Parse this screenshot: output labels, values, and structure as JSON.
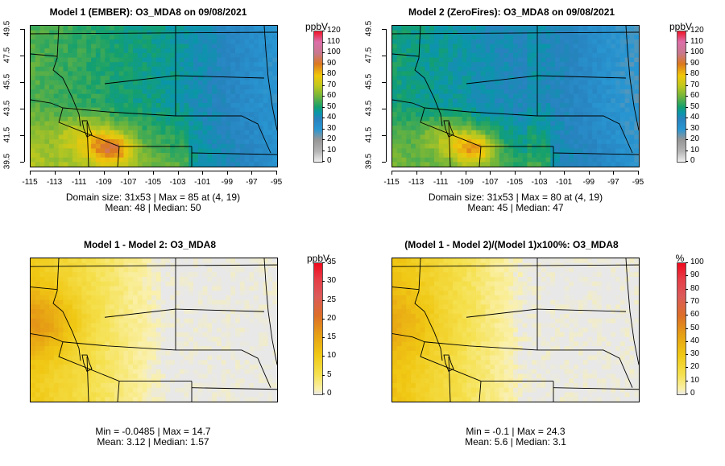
{
  "chart_data": [
    {
      "type": "heatmap",
      "title": "Model 1 (EMBER): O3_MDA8 on 09/08/2021",
      "colorbar_unit": "ppbV",
      "colorbar_ticks": [
        "120",
        "110",
        "100",
        "90",
        "80",
        "70",
        "60",
        "50",
        "40",
        "30",
        "20",
        "10",
        "0"
      ],
      "colorbar_range": [
        0,
        120
      ],
      "colorscale": "absolute",
      "x_ticks": [
        "-115",
        "-113",
        "-111",
        "-109",
        "-107",
        "-105",
        "-103",
        "-101",
        "-99",
        "-97",
        "-95"
      ],
      "y_ticks": [
        "49.5",
        "47.5",
        "45.5",
        "43.5",
        "41.5",
        "39.5"
      ],
      "xlim": [
        -115,
        -95
      ],
      "ylim": [
        39.5,
        49.5
      ],
      "stats_line1": "Domain size: 31x53 | Max = 85 at (4, 19)",
      "stats_line2": "Mean: 48 |  Median: 50",
      "scene": "m1"
    },
    {
      "type": "heatmap",
      "title": "Model 2 (ZeroFires): O3_MDA8 on 09/08/2021",
      "colorbar_unit": "ppbV",
      "colorbar_ticks": [
        "120",
        "110",
        "100",
        "90",
        "80",
        "70",
        "60",
        "50",
        "40",
        "30",
        "20",
        "10",
        "0"
      ],
      "colorbar_range": [
        0,
        120
      ],
      "colorscale": "absolute",
      "x_ticks": [
        "-115",
        "-113",
        "-111",
        "-109",
        "-107",
        "-105",
        "-103",
        "-101",
        "-99",
        "-97",
        "-95"
      ],
      "y_ticks": [
        "49.5",
        "47.5",
        "45.5",
        "43.5",
        "41.5",
        "39.5"
      ],
      "xlim": [
        -115,
        -95
      ],
      "ylim": [
        39.5,
        49.5
      ],
      "stats_line1": "Domain size: 31x53 | Max = 80 at (4, 19)",
      "stats_line2": "Mean: 45 |  Median: 47",
      "scene": "m2"
    },
    {
      "type": "heatmap",
      "title": "Model 1 - Model 2: O3_MDA8",
      "colorbar_unit": "ppbV",
      "colorbar_ticks": [
        "35",
        "30",
        "25",
        "20",
        "15",
        "10",
        "5",
        "0"
      ],
      "colorbar_range": [
        0,
        35
      ],
      "colorscale": "difference",
      "x_ticks": [],
      "y_ticks": [],
      "stats_line1": "Min = -0.0485 | Max = 14.7",
      "stats_line2": "Mean: 3.12 |  Median: 1.57",
      "scene": "diff"
    },
    {
      "type": "heatmap",
      "title": "(Model 1 - Model 2)/(Model 1)x100%: O3_MDA8",
      "colorbar_unit": "%",
      "colorbar_ticks": [
        "100",
        "90",
        "80",
        "70",
        "60",
        "50",
        "40",
        "30",
        "20",
        "10",
        "0"
      ],
      "colorbar_range": [
        0,
        100
      ],
      "colorscale": "difference",
      "x_ticks": [],
      "y_ticks": [],
      "stats_line1": "Min = -0.1 | Max = 24.3",
      "stats_line2": "Mean: 5.6 |  Median: 3.1",
      "scene": "pct"
    }
  ]
}
